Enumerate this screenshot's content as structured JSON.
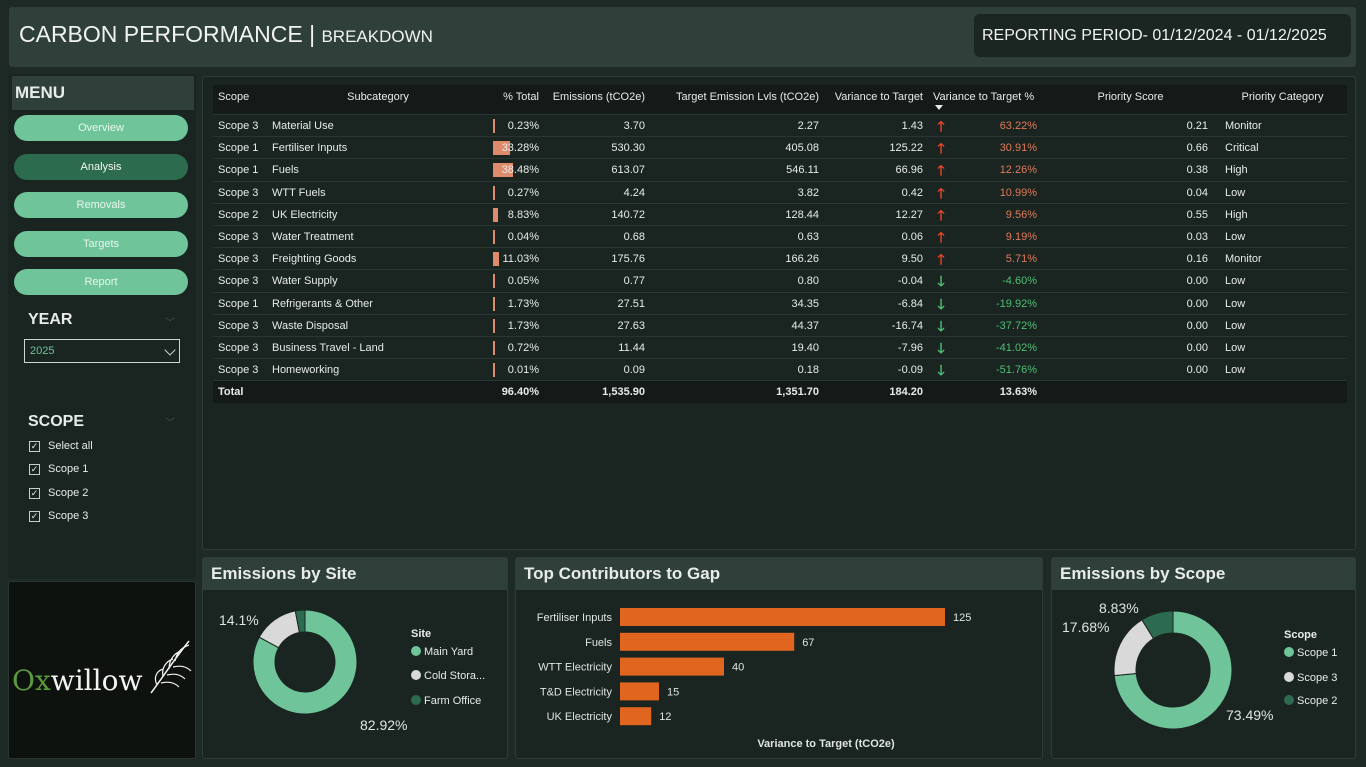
{
  "header": {
    "title": "CARBON PERFORMANCE",
    "separator": "|",
    "subtitle": "BREAKDOWN",
    "period": "REPORTING PERIOD- 01/12/2024 - 01/12/2025"
  },
  "sidebar": {
    "menu_title": "MENU",
    "nav": [
      "Overview",
      "Analysis",
      "Removals",
      "Targets",
      "Report"
    ],
    "year_title": "YEAR",
    "year_value": "2025",
    "scope_title": "SCOPE",
    "scope_options": [
      "Select all",
      "Scope 1",
      "Scope 2",
      "Scope 3"
    ],
    "check_glyph": "✓"
  },
  "logo": {
    "prefix": "Ox",
    "rest": "willow"
  },
  "table": {
    "headers": [
      "Scope",
      "Subcategory",
      "% Total",
      "Emissions (tCO2e)",
      "Target Emission Lvls (tCO2e)",
      "Variance to Target",
      "Variance to Target %",
      "Priority Score",
      "Priority Category"
    ],
    "rows": [
      {
        "scope": "Scope 3",
        "sub": "Material Use",
        "pct": "0.23%",
        "pct_value": 0.23,
        "em": "3.70",
        "tgt": "2.27",
        "var": "1.43",
        "dir": "up",
        "varp": "63.22%",
        "ps": "0.21",
        "pc": "Monitor"
      },
      {
        "scope": "Scope 1",
        "sub": "Fertiliser Inputs",
        "pct": "33.28%",
        "pct_value": 33.28,
        "em": "530.30",
        "tgt": "405.08",
        "var": "125.22",
        "dir": "up",
        "varp": "30.91%",
        "ps": "0.66",
        "pc": "Critical"
      },
      {
        "scope": "Scope 1",
        "sub": "Fuels",
        "pct": "38.48%",
        "pct_value": 38.48,
        "em": "613.07",
        "tgt": "546.11",
        "var": "66.96",
        "dir": "up",
        "varp": "12.26%",
        "ps": "0.38",
        "pc": "High"
      },
      {
        "scope": "Scope 3",
        "sub": "WTT Fuels",
        "pct": "0.27%",
        "pct_value": 0.27,
        "em": "4.24",
        "tgt": "3.82",
        "var": "0.42",
        "dir": "up",
        "varp": "10.99%",
        "ps": "0.04",
        "pc": "Low"
      },
      {
        "scope": "Scope 2",
        "sub": "UK Electricity",
        "pct": "8.83%",
        "pct_value": 8.83,
        "em": "140.72",
        "tgt": "128.44",
        "var": "12.27",
        "dir": "up",
        "varp": "9.56%",
        "ps": "0.55",
        "pc": "High"
      },
      {
        "scope": "Scope 3",
        "sub": "Water Treatment",
        "pct": "0.04%",
        "pct_value": 0.04,
        "em": "0.68",
        "tgt": "0.63",
        "var": "0.06",
        "dir": "up",
        "varp": "9.19%",
        "ps": "0.03",
        "pc": "Low"
      },
      {
        "scope": "Scope 3",
        "sub": "Freighting Goods",
        "pct": "11.03%",
        "pct_value": 11.03,
        "em": "175.76",
        "tgt": "166.26",
        "var": "9.50",
        "dir": "up",
        "varp": "5.71%",
        "ps": "0.16",
        "pc": "Monitor"
      },
      {
        "scope": "Scope 3",
        "sub": "Water Supply",
        "pct": "0.05%",
        "pct_value": 0.05,
        "em": "0.77",
        "tgt": "0.80",
        "var": "-0.04",
        "dir": "down",
        "varp": "-4.60%",
        "ps": "0.00",
        "pc": "Low"
      },
      {
        "scope": "Scope 1",
        "sub": "Refrigerants & Other",
        "pct": "1.73%",
        "pct_value": 1.73,
        "em": "27.51",
        "tgt": "34.35",
        "var": "-6.84",
        "dir": "down",
        "varp": "-19.92%",
        "ps": "0.00",
        "pc": "Low"
      },
      {
        "scope": "Scope 3",
        "sub": "Waste Disposal",
        "pct": "1.73%",
        "pct_value": 1.73,
        "em": "27.63",
        "tgt": "44.37",
        "var": "-16.74",
        "dir": "down",
        "varp": "-37.72%",
        "ps": "0.00",
        "pc": "Low"
      },
      {
        "scope": "Scope 3",
        "sub": "Business Travel - Land",
        "pct": "0.72%",
        "pct_value": 0.72,
        "em": "11.44",
        "tgt": "19.40",
        "var": "-7.96",
        "dir": "down",
        "varp": "-41.02%",
        "ps": "0.00",
        "pc": "Low"
      },
      {
        "scope": "Scope 3",
        "sub": "Homeworking",
        "pct": "0.01%",
        "pct_value": 0.01,
        "em": "0.09",
        "tgt": "0.18",
        "var": "-0.09",
        "dir": "down",
        "varp": "-51.76%",
        "ps": "0.00",
        "pc": "Low"
      }
    ],
    "total": {
      "label": "Total",
      "pct": "96.40%",
      "em": "1,535.90",
      "tgt": "1,351.70",
      "var": "184.20",
      "varp": "13.63%"
    },
    "arrow_up": "🡑",
    "arrow_down": "🡓"
  },
  "site_card": {
    "title": "Emissions by Site"
  },
  "gap_card": {
    "title": "Top Contributors to Gap"
  },
  "scope_card": {
    "title": "Emissions by Scope"
  },
  "colors": {
    "accent": "#6fc49a",
    "light": "#d9d9d9",
    "dark_green": "#2d6b50",
    "orange": "#e0661f"
  },
  "chart_data": [
    {
      "type": "pie",
      "title": "Emissions by Site",
      "legend_title": "Site",
      "legend": "right",
      "series": [
        {
          "name": "Main Yard",
          "value": 82.92,
          "label": "82.92%",
          "color": "#6fc49a"
        },
        {
          "name": "Cold Stora...",
          "value": 14.1,
          "label": "14.1%",
          "color": "#d9d9d9"
        },
        {
          "name": "Farm Office",
          "value": 2.98,
          "label": "",
          "color": "#2d6b50"
        }
      ]
    },
    {
      "type": "bar",
      "orientation": "horizontal",
      "title": "Top Contributors to Gap",
      "categories": [
        "Fertiliser Inputs",
        "Fuels",
        "WTT Electricity",
        "T&D Electricity",
        "UK Electricity"
      ],
      "values": [
        125,
        67,
        40,
        15,
        12
      ],
      "value_labels": [
        "125",
        "67",
        "40",
        "15",
        "12"
      ],
      "xlabel": "Variance to Target (tCO2e)",
      "xlim": [
        0,
        130
      ],
      "grid": false,
      "color": "#e0661f"
    },
    {
      "type": "pie",
      "title": "Emissions by Scope",
      "legend_title": "Scope",
      "legend": "right",
      "series": [
        {
          "name": "Scope 1",
          "value": 73.49,
          "label": "73.49%",
          "color": "#6fc49a"
        },
        {
          "name": "Scope 3",
          "value": 17.68,
          "label": "17.68%",
          "color": "#d9d9d9"
        },
        {
          "name": "Scope 2",
          "value": 8.83,
          "label": "8.83%",
          "color": "#2d6b50"
        }
      ]
    }
  ]
}
